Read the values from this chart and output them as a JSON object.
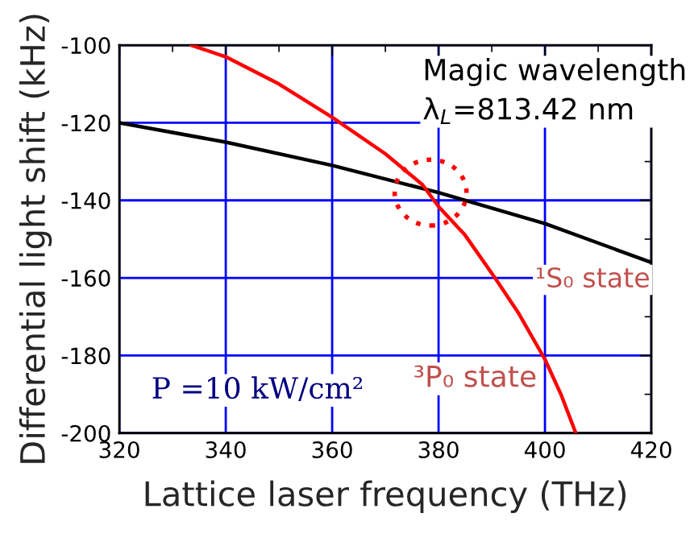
{
  "chart_data": {
    "type": "line",
    "xlabel": "Lattice laser frequency (THz)",
    "ylabel": "Differential light shift (kHz)",
    "series": [
      {
        "color": "#000000",
        "x": [
          320,
          340,
          360,
          380,
          400,
          420
        ],
        "values": [
          -120,
          -125,
          -131,
          -138,
          -146,
          -156
        ]
      },
      {
        "color": "#ff0000",
        "x": [
          333.5,
          340,
          350,
          360,
          370,
          377,
          380,
          385,
          390.6,
          395,
          400,
          403,
          405.8
        ],
        "values": [
          -100,
          -103,
          -110,
          -118.6,
          -128,
          -136,
          -141.6,
          -149,
          -160,
          -169,
          -181,
          -190,
          -200
        ]
      }
    ],
    "annotations": [
      "Magic wavelength\nλ$_{L}$=813.42 nm",
      "P =10 kW/cm²",
      "¹S₀ state",
      "³P₀ state"
    ],
    "xlim": [
      320,
      420
    ],
    "xticks": [
      320,
      340,
      360,
      380,
      400,
      420
    ],
    "ylim": [
      -200,
      -100
    ],
    "yticks": [
      -200,
      -180,
      -160,
      -140,
      -120,
      -100
    ],
    "grid": true,
    "legend": false
  }
}
